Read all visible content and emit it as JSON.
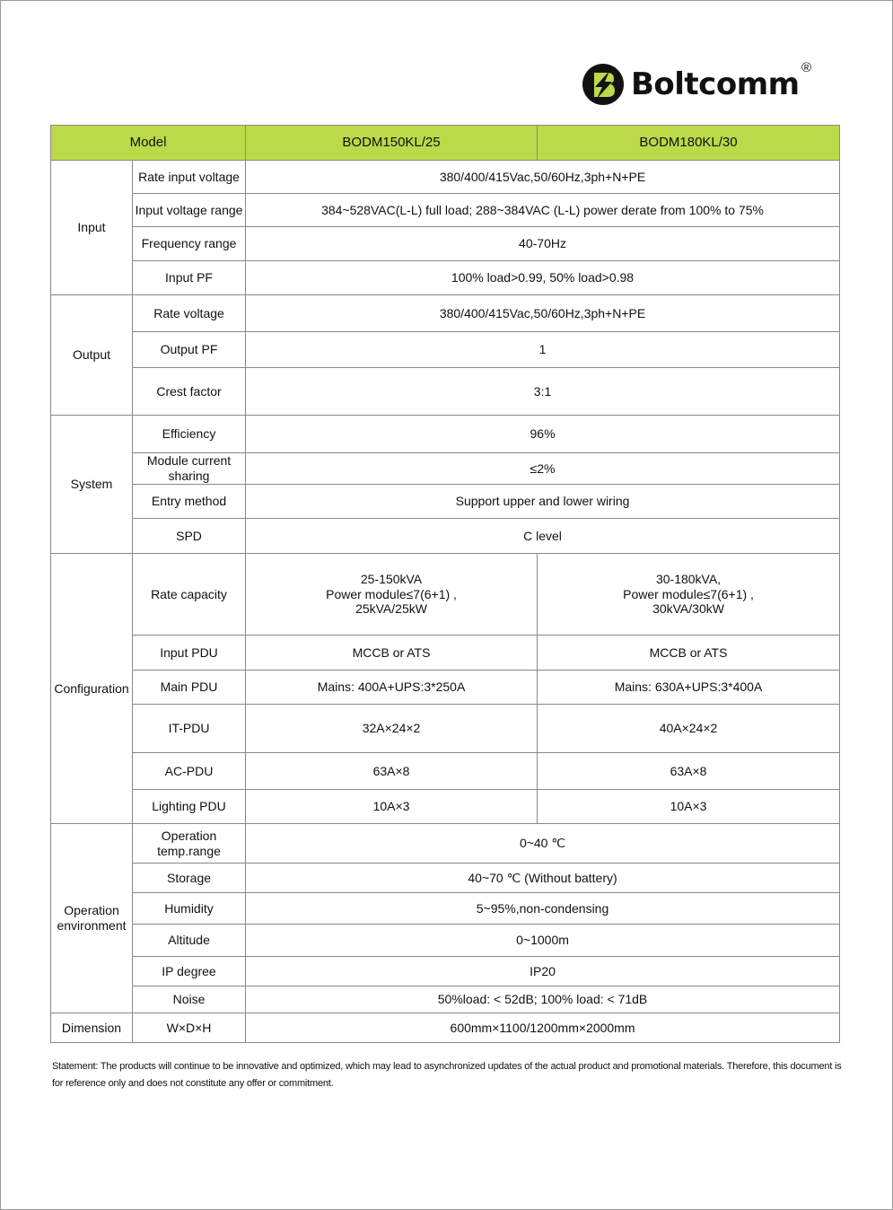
{
  "brand": {
    "name": "Boltcomm",
    "registered": "®",
    "color": "#bcd94a"
  },
  "header": {
    "model": "Model",
    "col1": "BODM150KL/25",
    "col2": "BODM180KL/30"
  },
  "groups": [
    {
      "name": "Input",
      "rows": [
        {
          "label": "Rate input voltage",
          "value": "380/400/415Vac,50/60Hz,3ph+N+PE"
        },
        {
          "label": "Input voltage range",
          "value": "384~528VAC(L-L) full load; 288~384VAC (L-L) power derate from 100% to 75%"
        },
        {
          "label": "Frequency range",
          "value": "40-70Hz"
        },
        {
          "label": "Input PF",
          "value": "100% load>0.99, 50% load>0.98"
        }
      ]
    },
    {
      "name": "Output",
      "rows": [
        {
          "label": "Rate voltage",
          "value": "380/400/415Vac,50/60Hz,3ph+N+PE"
        },
        {
          "label": "Output PF",
          "value": "1"
        },
        {
          "label": "Crest factor",
          "value": "3:1"
        }
      ]
    },
    {
      "name": "System",
      "rows": [
        {
          "label": "Efficiency",
          "value": "96%"
        },
        {
          "label": "Module current sharing",
          "value": "≤2%"
        },
        {
          "label": "Entry method",
          "value": "Support upper and lower wiring"
        },
        {
          "label": "SPD",
          "value": "C level"
        }
      ]
    },
    {
      "name": "Configuration",
      "rows": [
        {
          "label": "Rate capacity",
          "v1": "25-150kVA\nPower module≤7(6+1) ,\n25kVA/25kW",
          "v2": "30-180kVA,\nPower module≤7(6+1) ,\n30kVA/30kW"
        },
        {
          "label": "Input PDU",
          "v1": "MCCB or ATS",
          "v2": "MCCB or ATS"
        },
        {
          "label": "Main PDU",
          "v1": "Mains: 400A+UPS:3*250A",
          "v2": "Mains: 630A+UPS:3*400A"
        },
        {
          "label": "IT-PDU",
          "v1": "32A×24×2",
          "v2": "40A×24×2"
        },
        {
          "label": "AC-PDU",
          "v1": "63A×8",
          "v2": "63A×8"
        },
        {
          "label": "Lighting PDU",
          "v1": "10A×3",
          "v2": "10A×3"
        }
      ]
    },
    {
      "name": "Operation environment",
      "rows": [
        {
          "label": "Operation temp.range",
          "value": "0~40 ℃"
        },
        {
          "label": "Storage",
          "value": "40~70 ℃ (Without battery)"
        },
        {
          "label": "Humidity",
          "value": "5~95%,non-condensing"
        },
        {
          "label": "Altitude",
          "value": "0~1000m"
        },
        {
          "label": "IP degree",
          "value": "IP20"
        },
        {
          "label": "Noise",
          "value": "50%load: < 52dB; 100% load: < 71dB"
        }
      ]
    },
    {
      "name": "Dimension",
      "rows": [
        {
          "label": "W×D×H",
          "value": "600mm×1100/1200mm×2000mm"
        }
      ]
    }
  ],
  "statement": "Statement: The products will continue to be innovative and optimized, which may lead to asynchronized updates of the actual product and promotional materials. Therefore, this document is for reference only and does not constitute any offer or commitment."
}
